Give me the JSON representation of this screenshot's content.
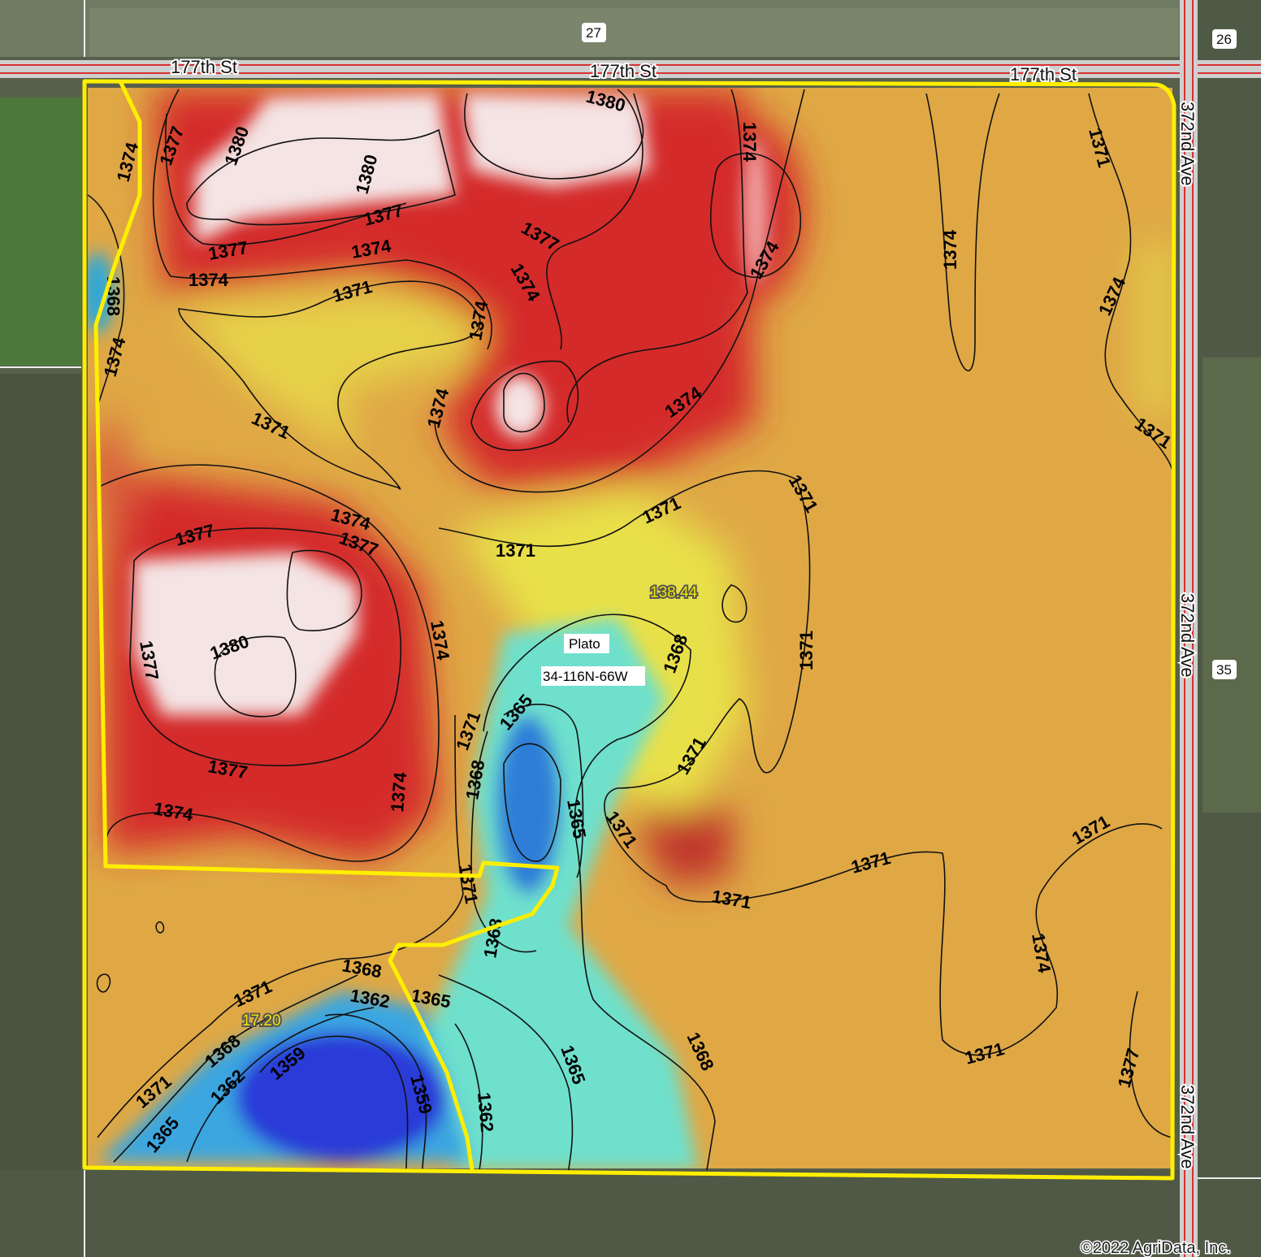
{
  "roads": {
    "north_left": "177th St",
    "north_center": "177th St",
    "north_right": "177th St",
    "east_top": "372nd Ave",
    "east_middle": "372nd Ave",
    "east_bottom": "372nd Ave"
  },
  "sections": {
    "north": "27",
    "northeast": "26",
    "east": "35"
  },
  "location": {
    "township": "Plato",
    "plss": "34-116N-66W"
  },
  "badges": {
    "area_a": "138.44",
    "area_b": "17.20"
  },
  "contour_labels": [
    "1380",
    "1380",
    "1380",
    "1377",
    "1374",
    "1377",
    "1374",
    "1374",
    "1377",
    "1374",
    "1371",
    "1374",
    "1377",
    "1374",
    "1371",
    "1374",
    "1374",
    "1368",
    "1374",
    "1371",
    "1374",
    "1374",
    "1374",
    "1371",
    "1371",
    "1371",
    "1377",
    "1377",
    "1374",
    "1377",
    "1380",
    "1377",
    "1374",
    "1374",
    "1374",
    "1371",
    "1368",
    "1371",
    "1365",
    "1368",
    "1365",
    "1371",
    "1371",
    "1371",
    "1371",
    "1368",
    "1368",
    "1371",
    "1362",
    "1365",
    "1359",
    "1368",
    "1362",
    "1365",
    "1359",
    "1365",
    "1362",
    "1368",
    "1371",
    "1371",
    "1371",
    "1371",
    "1374",
    "1371",
    "1377"
  ],
  "copyright": "©2022 AgriData, Inc.",
  "colors": {
    "boundary": "#ffee00",
    "high": "#d42a2a",
    "peak": "#f4e4e4",
    "mid": "#dfa845",
    "low_mid": "#e8e04a",
    "low": "#58d4d8",
    "lowest": "#2d4fd8",
    "road": "#d83030"
  }
}
